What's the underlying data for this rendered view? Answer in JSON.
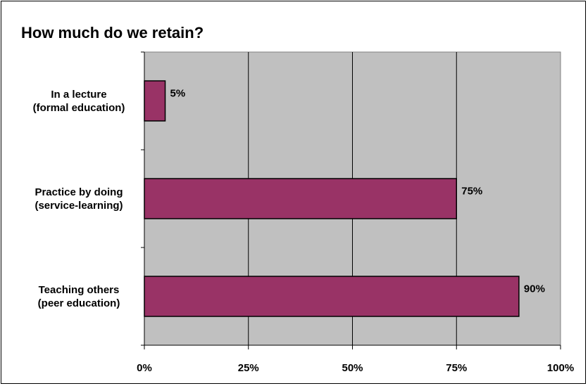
{
  "chart_data": {
    "type": "bar",
    "orientation": "horizontal",
    "title": "How much do we retain?",
    "categories": [
      [
        "In a lecture",
        "(formal education)"
      ],
      [
        "Practice by doing",
        "(service-learning)"
      ],
      [
        "Teaching others",
        "(peer education)"
      ]
    ],
    "values": [
      5,
      75,
      90
    ],
    "data_labels": [
      "5%",
      "75%",
      "90%"
    ],
    "xlim": [
      0,
      100
    ],
    "xticks": [
      0,
      25,
      50,
      75,
      100
    ],
    "xtick_labels": [
      "0%",
      "25%",
      "50%",
      "75%",
      "100%"
    ],
    "xlabel": "",
    "ylabel": "",
    "grid": true,
    "legend": "none",
    "colors": {
      "bar": "#993366",
      "plot_background": "#c0c0c0",
      "gridline": "#000000"
    }
  }
}
